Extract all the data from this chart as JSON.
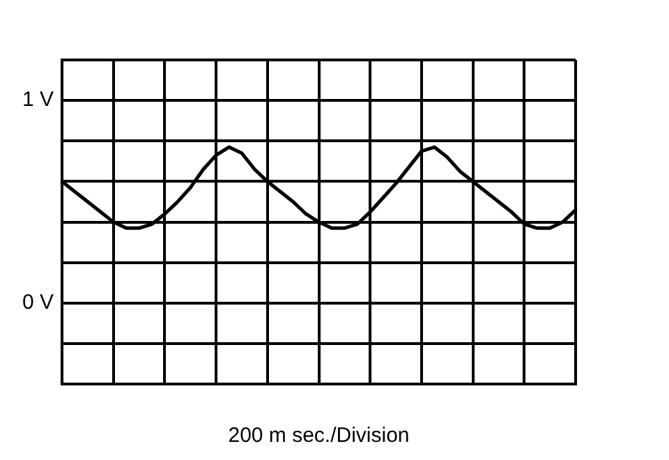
{
  "chart_data": {
    "type": "line",
    "xlabel": "200 m sec./Division",
    "categories": [
      null,
      null,
      null,
      null,
      null,
      null,
      null,
      null,
      null,
      null,
      null,
      null,
      null,
      null,
      null,
      null,
      null,
      null,
      null,
      null,
      null,
      null,
      null,
      null,
      null,
      null,
      null,
      null,
      null,
      null,
      null,
      null,
      null,
      null,
      null,
      null,
      null,
      null,
      null,
      null,
      null
    ],
    "series": [
      {
        "color": "#000000",
        "values": [
          0.6,
          0.55,
          0.5,
          0.45,
          0.4,
          0.37,
          0.37,
          0.39,
          0.44,
          0.5,
          0.57,
          0.66,
          0.73,
          0.77,
          0.74,
          0.66,
          0.6,
          0.55,
          0.5,
          0.44,
          0.4,
          0.37,
          0.37,
          0.39,
          0.45,
          0.52,
          0.59,
          0.67,
          0.75,
          0.77,
          0.72,
          0.65,
          0.6,
          0.55,
          0.5,
          0.45,
          0.39,
          0.37,
          0.37,
          0.4,
          0.46
        ]
      }
    ],
    "ylim": [
      -0.4,
      1.2
    ],
    "yticks": [
      {
        "value": -0.4,
        "label": null
      },
      {
        "value": -0.2,
        "label": null
      },
      {
        "value": 0,
        "label": "0 V"
      },
      {
        "value": 0.2,
        "label": null
      },
      {
        "value": 0.4,
        "label": null
      },
      {
        "value": 0.6,
        "label": null
      },
      {
        "value": 0.8,
        "label": null
      },
      {
        "value": 1,
        "label": "1 V"
      },
      {
        "value": 1.2,
        "label": null
      }
    ],
    "grid": true,
    "legend": false,
    "marker": "none",
    "line_style": "solid"
  }
}
